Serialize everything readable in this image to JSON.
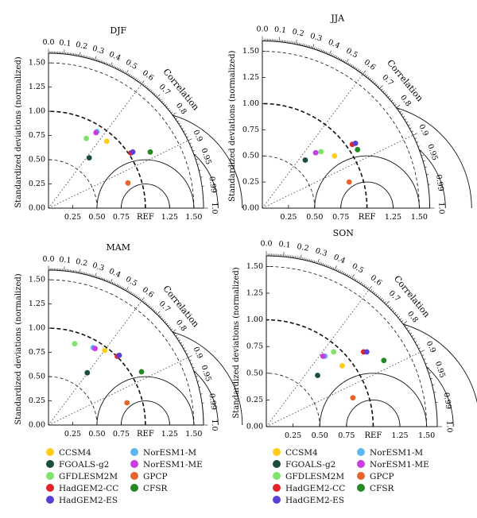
{
  "chart_data": [
    {
      "type": "scatter",
      "subtype": "taylor-diagram",
      "title": "DJF",
      "ylabel": "Standardized deviations (normalized)",
      "angle_label": "Correlation",
      "ref_label": "REF",
      "rmax": 1.6,
      "correlation_ticks": [
        "0.0",
        "0.1",
        "0.2",
        "0.3",
        "0.4",
        "0.5",
        "0.6",
        "0.7",
        "0.8",
        "0.9",
        "0.95",
        "0.99",
        "1.0"
      ],
      "x_ticks": [
        "0.25",
        "0.50",
        "0.75",
        "1.25",
        "1.50"
      ],
      "y_ticks": [
        "0.00",
        "0.25",
        "0.50",
        "0.75",
        "1.00",
        "1.25",
        "1.50"
      ],
      "points": [
        {
          "model": "CCSM4",
          "x": 0.6,
          "y": 0.69
        },
        {
          "model": "FGOALS-g2",
          "x": 0.42,
          "y": 0.52
        },
        {
          "model": "GFDLESM2M",
          "x": 0.39,
          "y": 0.72
        },
        {
          "model": "HadGEM2-CC",
          "x": 0.85,
          "y": 0.57
        },
        {
          "model": "HadGEM2-ES",
          "x": 0.87,
          "y": 0.58
        },
        {
          "model": "NorESM1-M",
          "x": 0.5,
          "y": 0.79
        },
        {
          "model": "NorESM1-ME",
          "x": 0.49,
          "y": 0.78
        },
        {
          "model": "GPCP",
          "x": 0.82,
          "y": 0.26
        },
        {
          "model": "CFSR",
          "x": 1.05,
          "y": 0.58
        }
      ]
    },
    {
      "type": "scatter",
      "subtype": "taylor-diagram",
      "title": "JJA",
      "ylabel": "Standardized deviations (normalized)",
      "angle_label": "Correlation",
      "ref_label": "REF",
      "rmax": 1.6,
      "correlation_ticks": [
        "0.0",
        "0.1",
        "0.2",
        "0.3",
        "0.4",
        "0.5",
        "0.6",
        "0.7",
        "0.8",
        "0.9",
        "0.95",
        "0.99",
        "1.0"
      ],
      "x_ticks": [
        "0.25",
        "0.50",
        "0.75",
        "1.25",
        "1.50"
      ],
      "y_ticks": [
        "0.00",
        "0.25",
        "0.50",
        "0.75",
        "1.00",
        "1.25",
        "1.50"
      ],
      "points": [
        {
          "model": "CCSM4",
          "x": 0.69,
          "y": 0.5
        },
        {
          "model": "FGOALS-g2",
          "x": 0.41,
          "y": 0.46
        },
        {
          "model": "GFDLESM2M",
          "x": 0.56,
          "y": 0.54
        },
        {
          "model": "HadGEM2-CC",
          "x": 0.86,
          "y": 0.61
        },
        {
          "model": "HadGEM2-ES",
          "x": 0.89,
          "y": 0.62
        },
        {
          "model": "NorESM1-M",
          "x": 0.51,
          "y": 0.53
        },
        {
          "model": "NorESM1-ME",
          "x": 0.51,
          "y": 0.53
        },
        {
          "model": "GPCP",
          "x": 0.83,
          "y": 0.25
        },
        {
          "model": "CFSR",
          "x": 0.91,
          "y": 0.56
        }
      ]
    },
    {
      "type": "scatter",
      "subtype": "taylor-diagram",
      "title": "MAM",
      "ylabel": "Standardized deviations (normalized)",
      "angle_label": "Correlation",
      "ref_label": "REF",
      "rmax": 1.6,
      "correlation_ticks": [
        "0.0",
        "0.1",
        "0.2",
        "0.3",
        "0.4",
        "0.5",
        "0.6",
        "0.7",
        "0.8",
        "0.9",
        "0.95",
        "0.99",
        "1.0"
      ],
      "x_ticks": [
        "0.25",
        "0.50",
        "0.75",
        "1.25",
        "1.50"
      ],
      "y_ticks": [
        "0.00",
        "0.25",
        "0.50",
        "0.75",
        "1.00",
        "1.25",
        "1.50"
      ],
      "points": [
        {
          "model": "CCSM4",
          "x": 0.58,
          "y": 0.77
        },
        {
          "model": "FGOALS-g2",
          "x": 0.4,
          "y": 0.54
        },
        {
          "model": "GFDLESM2M",
          "x": 0.27,
          "y": 0.84
        },
        {
          "model": "HadGEM2-CC",
          "x": 0.71,
          "y": 0.71
        },
        {
          "model": "HadGEM2-ES",
          "x": 0.73,
          "y": 0.72
        },
        {
          "model": "NorESM1-M",
          "x": 0.46,
          "y": 0.8
        },
        {
          "model": "NorESM1-ME",
          "x": 0.48,
          "y": 0.79
        },
        {
          "model": "GPCP",
          "x": 0.81,
          "y": 0.23
        },
        {
          "model": "CFSR",
          "x": 0.96,
          "y": 0.55
        }
      ]
    },
    {
      "type": "scatter",
      "subtype": "taylor-diagram",
      "title": "SON",
      "ylabel": "Standardized deviations (normalized)",
      "angle_label": "Correlation",
      "ref_label": "REF",
      "rmax": 1.6,
      "correlation_ticks": [
        "0.0",
        "0.1",
        "0.2",
        "0.3",
        "0.4",
        "0.5",
        "0.6",
        "0.7",
        "0.8",
        "0.9",
        "0.95",
        "0.99",
        "1.0"
      ],
      "x_ticks": [
        "0.25",
        "0.50",
        "0.75",
        "1.25",
        "1.50"
      ],
      "y_ticks": [
        "0.00",
        "0.25",
        "0.50",
        "0.75",
        "1.00",
        "1.25",
        "1.50"
      ],
      "points": [
        {
          "model": "CCSM4",
          "x": 0.71,
          "y": 0.57
        },
        {
          "model": "FGOALS-g2",
          "x": 0.48,
          "y": 0.48
        },
        {
          "model": "GFDLESM2M",
          "x": 0.63,
          "y": 0.7
        },
        {
          "model": "HadGEM2-CC",
          "x": 0.91,
          "y": 0.7
        },
        {
          "model": "HadGEM2-ES",
          "x": 0.94,
          "y": 0.7
        },
        {
          "model": "NorESM1-M",
          "x": 0.55,
          "y": 0.66
        },
        {
          "model": "NorESM1-ME",
          "x": 0.53,
          "y": 0.66
        },
        {
          "model": "GPCP",
          "x": 0.81,
          "y": 0.27
        },
        {
          "model": "CFSR",
          "x": 1.1,
          "y": 0.62
        }
      ]
    }
  ],
  "models": [
    {
      "name": "CCSM4",
      "color": "#ffcc1a"
    },
    {
      "name": "FGOALS-g2",
      "color": "#1b4d3e"
    },
    {
      "name": "GFDLESM2M",
      "color": "#7de36a"
    },
    {
      "name": "HadGEM2-CC",
      "color": "#e3242b"
    },
    {
      "name": "HadGEM2-ES",
      "color": "#5b3fd6"
    },
    {
      "name": "NorESM1-M",
      "color": "#5bb8ef"
    },
    {
      "name": "NorESM1-ME",
      "color": "#c93ce0"
    },
    {
      "name": "GPCP",
      "color": "#e8642c"
    },
    {
      "name": "CFSR",
      "color": "#238a22"
    }
  ],
  "legend_order": [
    [
      "CCSM4",
      "NorESM1-M"
    ],
    [
      "FGOALS-g2",
      "NorESM1-ME"
    ],
    [
      "GFDLESM2M",
      "GPCP"
    ],
    [
      "HadGEM2-CC",
      "CFSR"
    ],
    [
      "HadGEM2-ES"
    ]
  ]
}
